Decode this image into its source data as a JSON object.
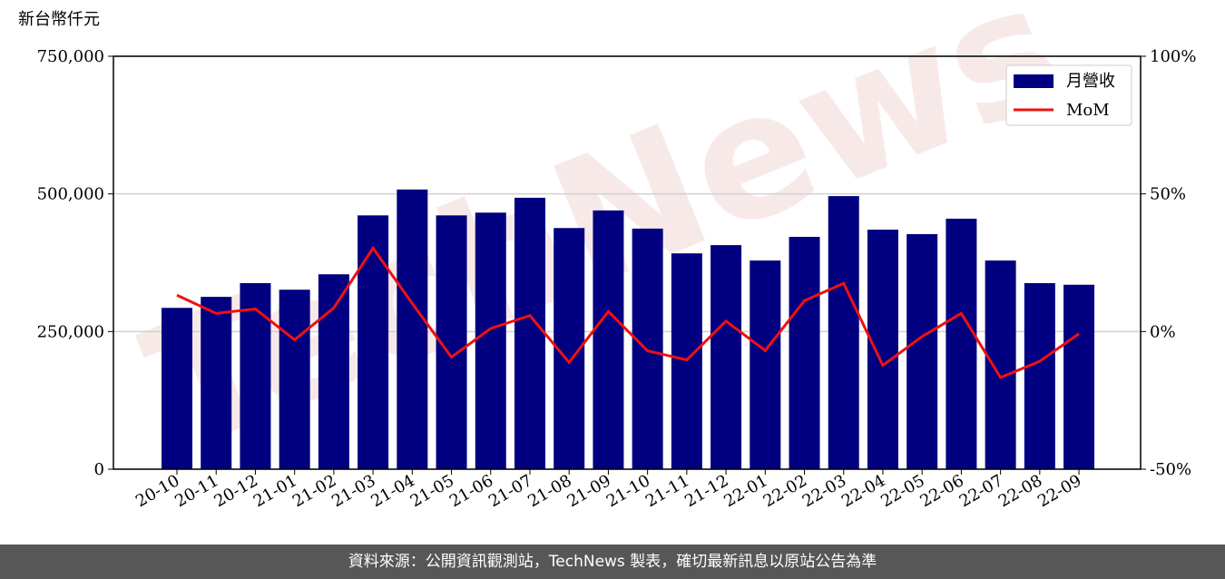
{
  "chart_data": {
    "type": "bar-line",
    "y_label": "新台幣仟元",
    "watermark": "TechNews",
    "categories": [
      "20-10",
      "20-11",
      "20-12",
      "21-01",
      "21-02",
      "21-03",
      "21-04",
      "21-05",
      "21-06",
      "21-07",
      "21-08",
      "21-09",
      "21-10",
      "21-11",
      "21-12",
      "22-01",
      "22-02",
      "22-03",
      "22-04",
      "22-05",
      "22-06",
      "22-07",
      "22-08",
      "22-09"
    ],
    "series": [
      {
        "name": "月營收",
        "color": "#000080",
        "kind": "bar",
        "values": [
          293000,
          313000,
          338000,
          326000,
          354000,
          461000,
          508000,
          461000,
          466000,
          493000,
          438000,
          470000,
          437000,
          392000,
          407000,
          379000,
          422000,
          496000,
          435000,
          427000,
          455000,
          379000,
          338000,
          335000
        ]
      },
      {
        "name": "MoM",
        "color": "#ee1111",
        "kind": "line",
        "axis": "y2",
        "values": [
          13.2,
          6.6,
          8.2,
          -3.0,
          8.6,
          30.3,
          10.2,
          -9.3,
          1.1,
          5.8,
          -11.2,
          7.3,
          -7.0,
          -10.3,
          3.8,
          -6.9,
          11.2,
          17.5,
          -12.3,
          -1.8,
          6.6,
          -16.7,
          -10.8,
          -0.8
        ]
      }
    ],
    "ylim": [
      0,
      750000
    ],
    "yticks": [
      0,
      {
        "value": 250000,
        "label": "250,000"
      },
      {
        "value": 500000,
        "label": "500,000"
      },
      {
        "value": 750000,
        "label": "750,000"
      }
    ],
    "y2lim": [
      -50,
      100
    ],
    "y2ticks": [
      {
        "value": -50,
        "label": "-50%"
      },
      {
        "value": 0,
        "label": "0%"
      },
      {
        "value": 50,
        "label": "50%"
      },
      {
        "value": 100,
        "label": "100%"
      }
    ],
    "grid": true,
    "legend": "upper right",
    "footer": "資料來源：公開資訊觀測站，TechNews 製表，確切最新訊息以原站公告為準"
  }
}
